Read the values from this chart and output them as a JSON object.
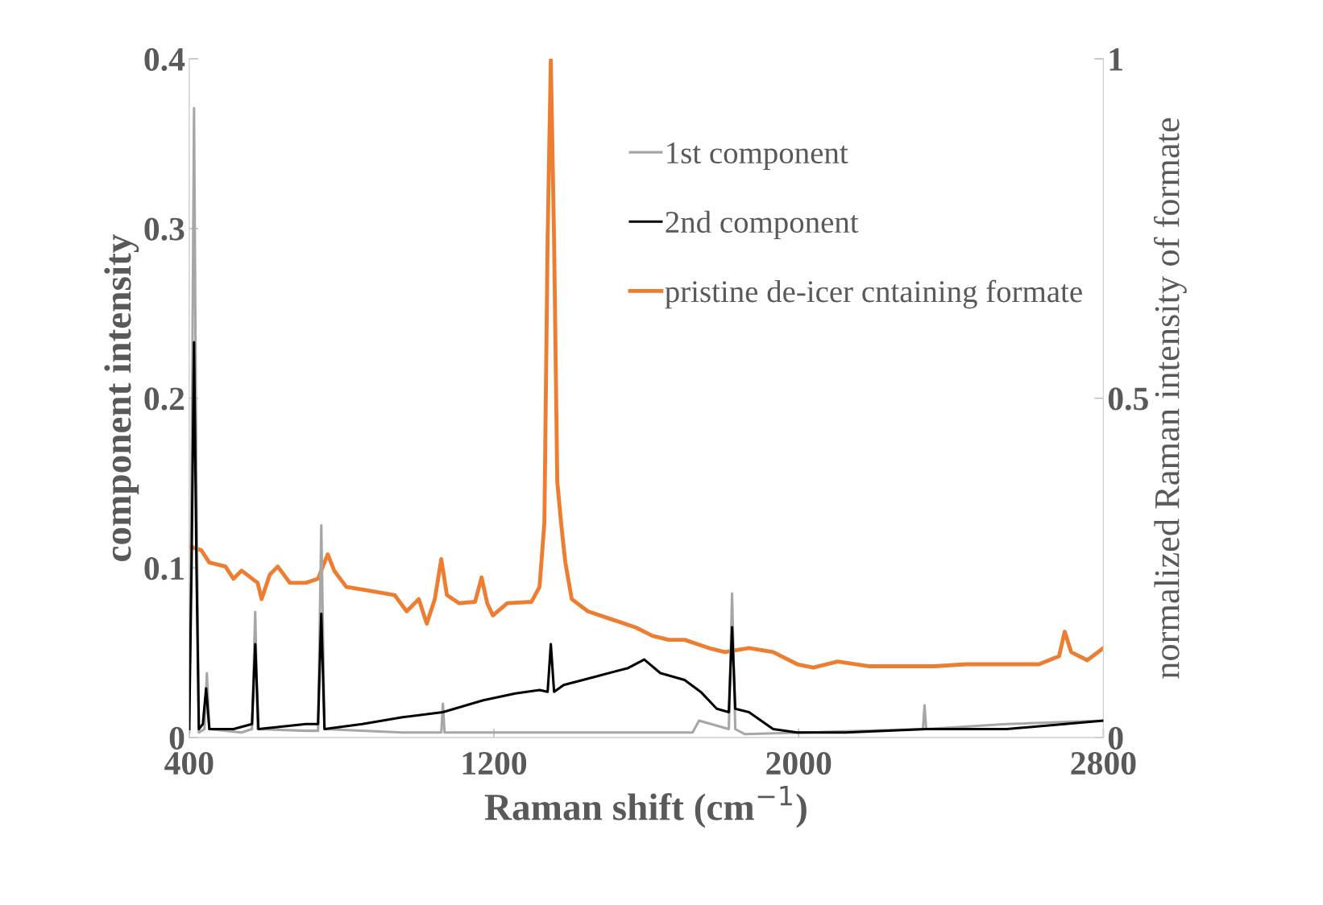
{
  "chart_data": {
    "type": "line",
    "xlabel": "Raman shift (cm$^{−1}$)",
    "ylabel": "component intensity",
    "y2label": "normalized Raman intensity of formate",
    "xlim": [
      400,
      2800
    ],
    "xticks": [
      400,
      1200,
      2000,
      2800
    ],
    "ylim": [
      0,
      0.4
    ],
    "yticks": [
      0,
      0.1,
      0.2,
      0.3,
      0.4
    ],
    "y2lim": [
      0,
      1
    ],
    "y2ticks": [
      0,
      0.5,
      1
    ],
    "legend": "top",
    "grid": false,
    "marker": "none",
    "line_style": "solid",
    "series": [
      {
        "name": "1st component",
        "color": "#a6a6a6",
        "x": [
          400,
          406.3,
          412.7,
          419.0,
          425.4,
          440.2,
          446.5,
          452.9,
          537.4,
          564.9,
          573.4,
          579.7,
          706.6,
          738.3,
          746.8,
          755.2,
          960.3,
          1061.8,
          1066.1,
          1070.3,
          1341,
          1721.6,
          1738.5,
          1816.7,
          1825.2,
          1833.6,
          1859.0,
          2017.6,
          2326.3,
          2330.5,
          2334.8,
          2546.2,
          2800
        ],
        "values": [
          0.003,
          0.15,
          0.371,
          0.15,
          0.003,
          0.005,
          0.038,
          0.005,
          0.003,
          0.005,
          0.074,
          0.005,
          0.004,
          0.004,
          0.125,
          0.005,
          0.003,
          0.003,
          0.02,
          0.003,
          0.003,
          0.003,
          0.01,
          0.005,
          0.085,
          0.005,
          0.002,
          0.003,
          0.005,
          0.019,
          0.005,
          0.008,
          0.01
        ]
      },
      {
        "name": "2nd component",
        "color": "#000000",
        "x": [
          400,
          406.3,
          412.7,
          419.0,
          425.4,
          436.0,
          444.4,
          452.9,
          516.3,
          564.9,
          573.4,
          581.8,
          706.6,
          738.3,
          746.8,
          755.2,
          854.6,
          960.3,
          1066.1,
          1171.8,
          1256.4,
          1319.8,
          1341,
          1349.4,
          1357.9,
          1383.2,
          1467.8,
          1552.4,
          1594.7,
          1637.0,
          1700.4,
          1742.7,
          1785.0,
          1816.7,
          1825.2,
          1833.6,
          1869.6,
          1933.0,
          1996.5,
          2123.3,
          2334.8,
          2546.2,
          2800
        ],
        "values": [
          0.005,
          0.103,
          0.233,
          0.103,
          0.005,
          0.008,
          0.029,
          0.005,
          0.005,
          0.008,
          0.055,
          0.005,
          0.008,
          0.008,
          0.073,
          0.005,
          0.008,
          0.012,
          0.015,
          0.022,
          0.026,
          0.028,
          0.027,
          0.055,
          0.027,
          0.031,
          0.036,
          0.041,
          0.046,
          0.038,
          0.034,
          0.027,
          0.017,
          0.015,
          0.065,
          0.017,
          0.015,
          0.005,
          0.003,
          0.003,
          0.005,
          0.005,
          0.01
        ]
      },
      {
        "name": "pristine de-icer cntaining formate",
        "color": "#ed7d31",
        "axis": "y2",
        "x": [
          400,
          431.7,
          452.9,
          495.2,
          516.3,
          537.4,
          579.7,
          590.3,
          611.5,
          632.6,
          664.3,
          706.6,
          738.3,
          763.7,
          780.6,
          812.3,
          875.8,
          939.2,
          970.9,
          1002.6,
          1023.8,
          1044.9,
          1061.8,
          1076.6,
          1108.4,
          1150.6,
          1167.6,
          1182.4,
          1197.2,
          1235.2,
          1298.7,
          1319.8,
          1332.5,
          1341.0,
          1349.4,
          1357.9,
          1366.3,
          1376.9,
          1387.5,
          1404.4,
          1446.7,
          1510.1,
          1573.5,
          1615.8,
          1658.1,
          1700.4,
          1763.9,
          1806.2,
          1869.6,
          1933.0,
          1996.5,
          2038.7,
          2102.2,
          2186.8,
          2271.3,
          2355.9,
          2440.5,
          2525.1,
          2630.8,
          2683.7,
          2698.5,
          2715.4,
          2757.7,
          2800
        ],
        "values": [
          0.282,
          0.276,
          0.258,
          0.252,
          0.234,
          0.246,
          0.228,
          0.204,
          0.24,
          0.252,
          0.228,
          0.228,
          0.234,
          0.27,
          0.246,
          0.222,
          0.216,
          0.21,
          0.186,
          0.204,
          0.168,
          0.204,
          0.263,
          0.21,
          0.198,
          0.2,
          0.236,
          0.198,
          0.18,
          0.198,
          0.2,
          0.222,
          0.317,
          0.735,
          0.998,
          0.735,
          0.377,
          0.313,
          0.258,
          0.204,
          0.186,
          0.174,
          0.162,
          0.15,
          0.144,
          0.144,
          0.132,
          0.126,
          0.132,
          0.126,
          0.108,
          0.103,
          0.112,
          0.105,
          0.105,
          0.105,
          0.108,
          0.108,
          0.108,
          0.12,
          0.156,
          0.126,
          0.114,
          0.132
        ]
      }
    ]
  }
}
